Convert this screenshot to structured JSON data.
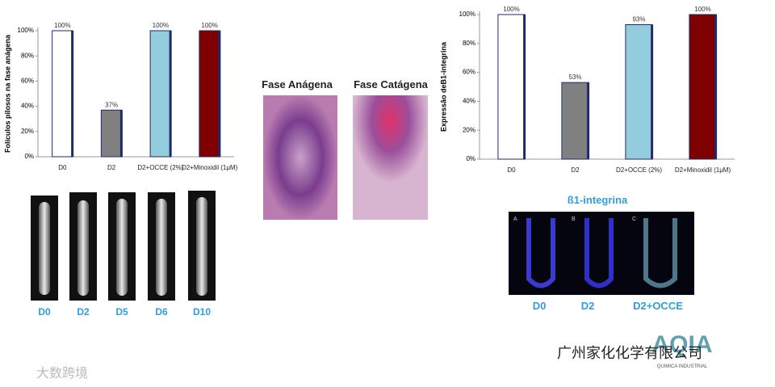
{
  "chart_data": [
    {
      "type": "bar",
      "ylabel": "Folículos pilosos na fase anágena",
      "categories": [
        "D0",
        "D2",
        "D2+OCCE (2%)",
        "D2+Minoxidil (1μM)"
      ],
      "values": [
        100,
        37,
        100,
        100
      ],
      "value_labels": [
        "100%",
        "37%",
        "100%",
        "100%"
      ],
      "colors": [
        "#ffffff",
        "#808080",
        "#93cddd",
        "#7f0000"
      ],
      "ylim": [
        0,
        100
      ],
      "yticks": [
        {
          "value": 0,
          "label": "0%"
        },
        {
          "value": 20,
          "label": "20%"
        },
        {
          "value": 40,
          "label": "40%"
        },
        {
          "value": 60,
          "label": "60%"
        },
        {
          "value": 80,
          "label": "80%"
        },
        {
          "value": 100,
          "label": "100%"
        }
      ]
    },
    {
      "type": "bar",
      "ylabel": "Expressão deB1-integrina",
      "categories": [
        "D0",
        "D2",
        "D2+OCCE (2%)",
        "D2+Minoxidil (1μM)"
      ],
      "values": [
        100,
        53,
        93,
        100
      ],
      "value_labels": [
        "100%",
        "53%",
        "93%",
        "100%"
      ],
      "colors": [
        "#ffffff",
        "#808080",
        "#93cddd",
        "#7f0000"
      ],
      "ylim": [
        0,
        100
      ],
      "yticks": [
        {
          "value": 0,
          "label": "0%"
        },
        {
          "value": 20,
          "label": "20%"
        },
        {
          "value": 40,
          "label": "40%"
        },
        {
          "value": 60,
          "label": "60%"
        },
        {
          "value": 80,
          "label": "80%"
        },
        {
          "value": 100,
          "label": "100%"
        }
      ]
    }
  ],
  "follicles": {
    "labels": [
      "D0",
      "D2",
      "D5",
      "D6",
      "D10"
    ]
  },
  "histology": {
    "labels": [
      "Fase Anágena",
      "Fase Catágena"
    ]
  },
  "integrin": {
    "title": "ß1-integrina",
    "panels": [
      "A",
      "B",
      "C"
    ],
    "labels": [
      "D0",
      "D2",
      "D2+OCCE"
    ]
  },
  "watermark": {
    "left": "大数跨境",
    "right": "广州家化化学有限公司",
    "logo": "AQIA",
    "logo_sub": "QUIMICA INDUSTRIAL"
  }
}
